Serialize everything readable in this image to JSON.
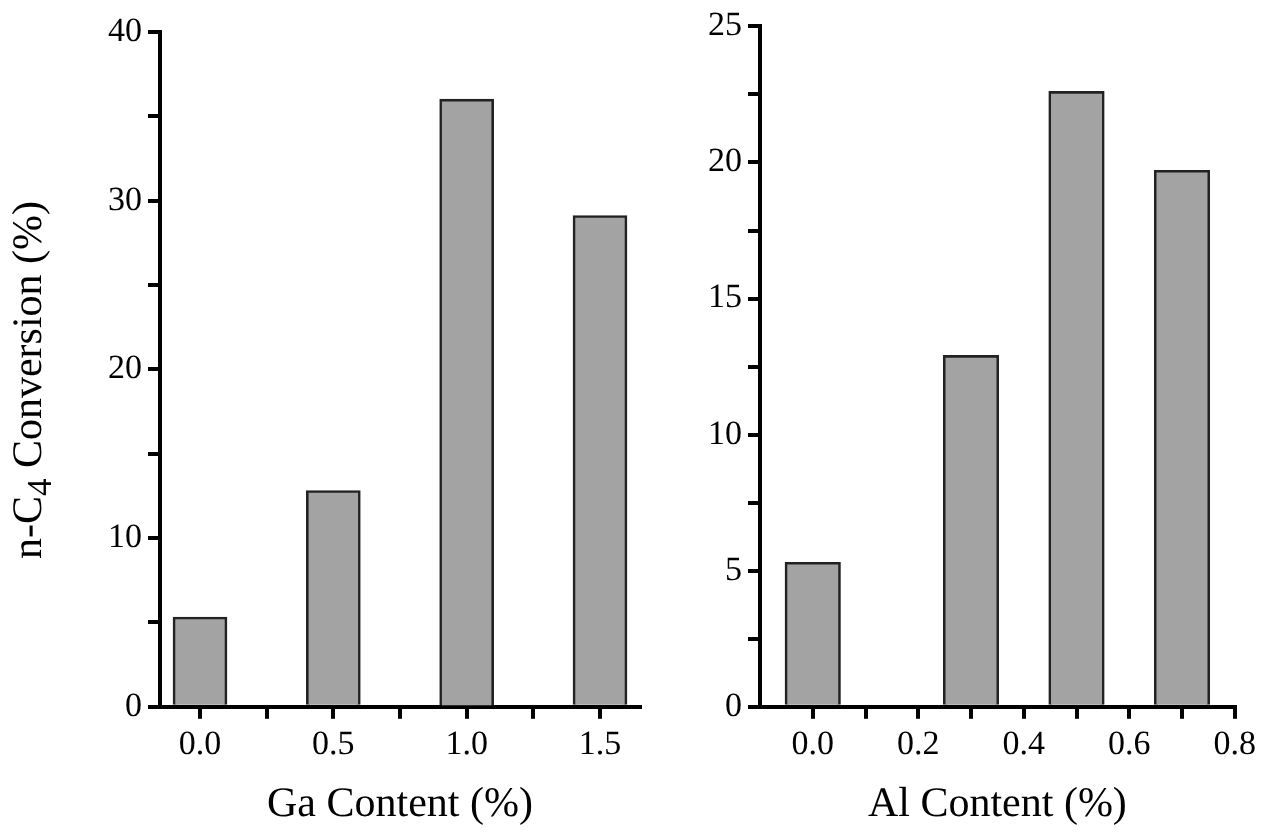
{
  "chart_data": [
    {
      "type": "bar",
      "x": [
        0.0,
        0.5,
        1.0,
        1.5
      ],
      "values": [
        5.3,
        12.8,
        36.0,
        29.1
      ],
      "color": "#a3a3a3",
      "xlabel": "Ga Content (%)",
      "ylabel": "n-C$_{4}$ Conversion (%)",
      "xlim": [
        -0.15,
        1.65
      ],
      "ylim": [
        0,
        40
      ],
      "xticks": [
        {
          "value": 0,
          "label": "0.0"
        },
        {
          "value": 0.25,
          "label": null
        },
        {
          "value": 0.5,
          "label": "0.5"
        },
        {
          "value": 0.75,
          "label": null
        },
        {
          "value": 1,
          "label": "1.0"
        },
        {
          "value": 1.25,
          "label": null
        },
        {
          "value": 1.5,
          "label": "1.5"
        }
      ],
      "yticks": [
        0,
        {
          "value": 5,
          "label": null
        },
        10,
        {
          "value": 15,
          "label": null
        },
        20,
        {
          "value": 25,
          "label": null
        },
        30,
        {
          "value": 35,
          "label": null
        },
        40
      ]
    },
    {
      "type": "bar",
      "x": [
        0.0,
        0.3,
        0.5,
        0.7
      ],
      "values": [
        5.3,
        12.9,
        22.6,
        19.7
      ],
      "color": "#a3a3a3",
      "xlabel": "Al Content (%)",
      "xlim": [
        -0.1,
        0.8
      ],
      "ylim": [
        0,
        25
      ],
      "xticks": [
        {
          "value": 0,
          "label": "0.0"
        },
        {
          "value": 0.1,
          "label": null
        },
        {
          "value": 0.2,
          "label": "0.2"
        },
        {
          "value": 0.3,
          "label": null
        },
        {
          "value": 0.4,
          "label": "0.4"
        },
        {
          "value": 0.5,
          "label": null
        },
        {
          "value": 0.6,
          "label": "0.6"
        },
        {
          "value": 0.7,
          "label": null
        },
        {
          "value": 0.8,
          "label": "0.8"
        }
      ],
      "yticks": [
        0,
        {
          "value": 2.5,
          "label": null
        },
        5,
        {
          "value": 7.5,
          "label": null
        },
        10,
        {
          "value": 12.5,
          "label": null
        },
        15,
        {
          "value": 17.5,
          "label": null
        },
        20,
        {
          "value": 22.5,
          "label": null
        },
        25
      ]
    }
  ]
}
